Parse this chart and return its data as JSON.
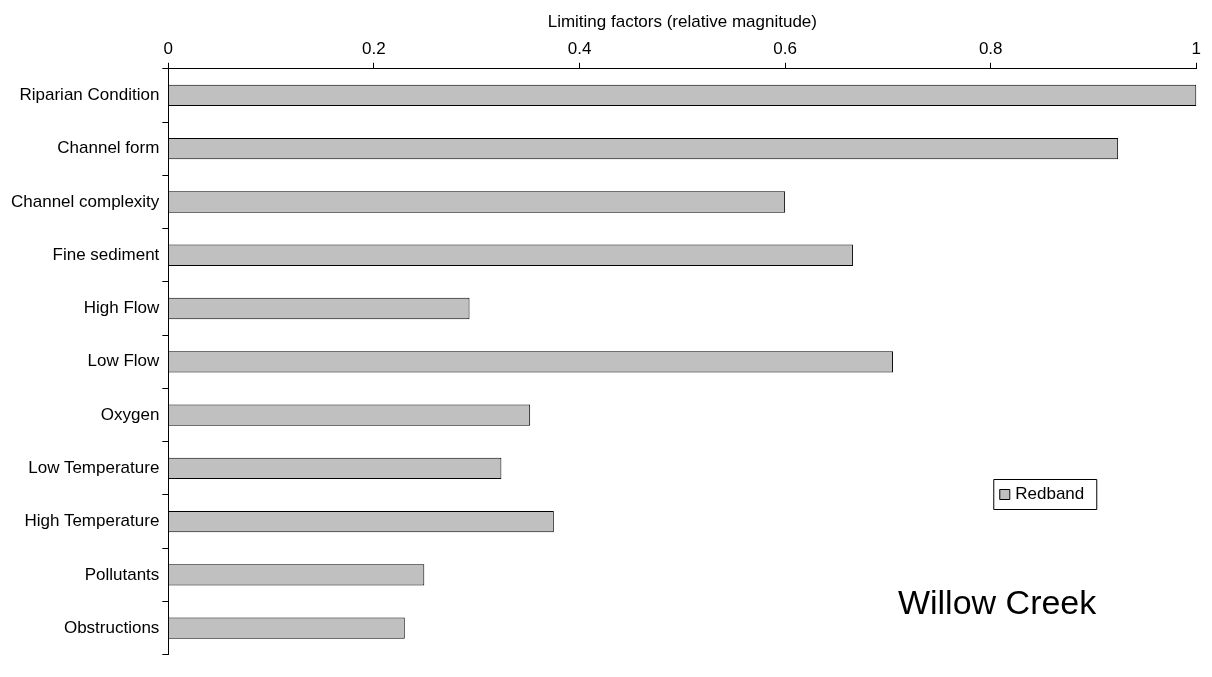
{
  "chart_data": {
    "type": "bar",
    "orientation": "horizontal",
    "xlabel": "Limiting factors (relative magnitude)",
    "categories": [
      "Riparian Condition",
      "Channel form",
      "Channel complexity",
      "Fine sediment",
      "High Flow",
      "Low Flow",
      "Oxygen",
      "Low Temperature",
      "High Temperature",
      "Pollutants",
      "Obstructions"
    ],
    "series": [
      {
        "name": "Redband",
        "color": "#c0c0c0",
        "values": [
          1.0,
          0.924,
          0.6,
          0.666,
          0.293,
          0.705,
          0.352,
          0.324,
          0.375,
          0.249,
          0.23
        ]
      }
    ],
    "xlim": [
      0,
      1
    ],
    "xticks": [
      0,
      0.2,
      0.4,
      0.6,
      0.8,
      1
    ],
    "grid": false,
    "legend": "right",
    "annotations": [
      "Willow Creek"
    ]
  }
}
